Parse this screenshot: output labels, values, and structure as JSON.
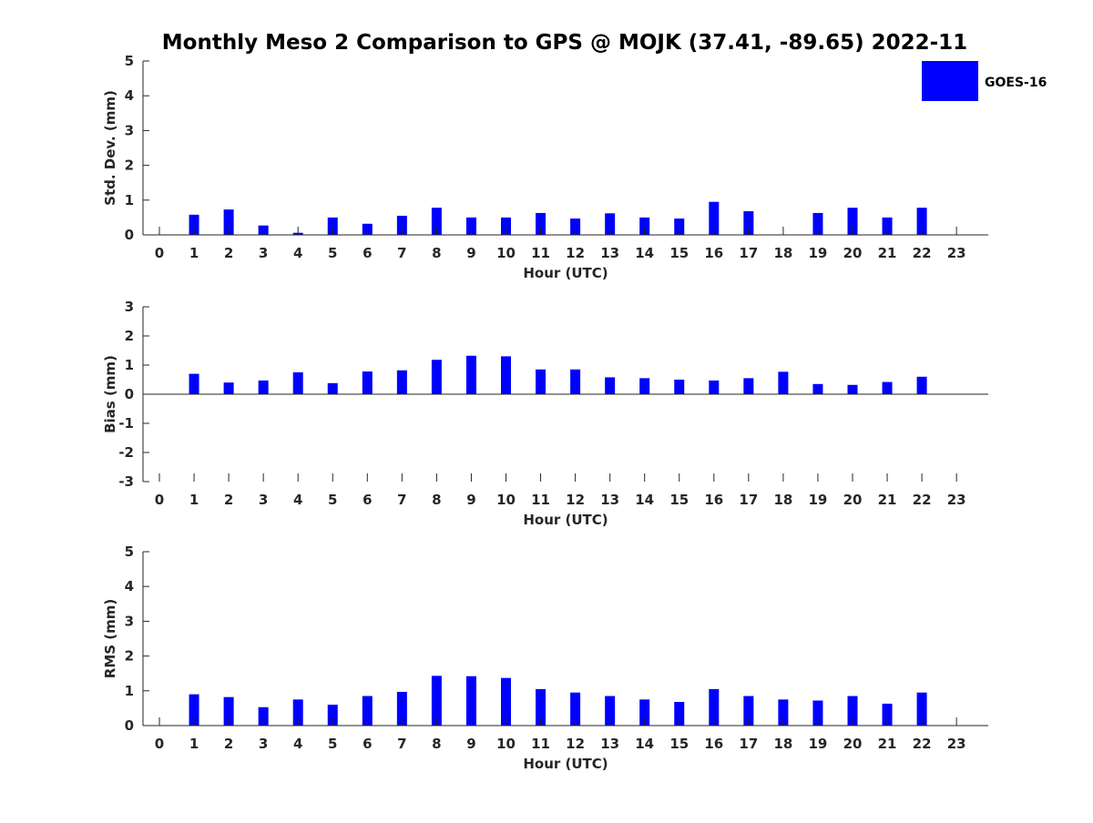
{
  "title": "Monthly Meso 2 Comparison to GPS @ MOJK (37.41, -89.65) 2022-11",
  "legend": {
    "label": "GOES-16",
    "color": "#0000ff",
    "placement": "top-right"
  },
  "bar_color": "#0000ff",
  "chart_data": [
    {
      "type": "bar",
      "title": "Monthly Meso 2 Comparison to GPS @ MOJK (37.41, -89.65) 2022-11",
      "xlabel": "Hour (UTC)",
      "ylabel": "Std. Dev. (mm)",
      "categories": [
        0,
        1,
        2,
        3,
        4,
        5,
        6,
        7,
        8,
        9,
        10,
        11,
        12,
        13,
        14,
        15,
        16,
        17,
        18,
        19,
        20,
        21,
        22,
        23
      ],
      "ylim": [
        0,
        5
      ],
      "yticks": [
        0,
        1,
        2,
        3,
        4,
        5
      ],
      "series": [
        {
          "name": "GOES-16",
          "values": [
            null,
            0.58,
            0.73,
            0.27,
            0.06,
            0.5,
            0.32,
            0.55,
            0.78,
            0.5,
            0.5,
            0.63,
            0.47,
            0.62,
            0.5,
            0.47,
            0.95,
            0.68,
            null,
            0.63,
            0.78,
            0.5,
            0.78,
            null
          ]
        }
      ],
      "grid": false
    },
    {
      "type": "bar",
      "xlabel": "Hour (UTC)",
      "ylabel": "Bias (mm)",
      "categories": [
        0,
        1,
        2,
        3,
        4,
        5,
        6,
        7,
        8,
        9,
        10,
        11,
        12,
        13,
        14,
        15,
        16,
        17,
        18,
        19,
        20,
        21,
        22,
        23
      ],
      "ylim": [
        -3,
        3
      ],
      "yticks": [
        -3,
        -2,
        -1,
        0,
        1,
        2,
        3
      ],
      "series": [
        {
          "name": "GOES-16",
          "values": [
            null,
            0.7,
            0.4,
            0.47,
            0.75,
            0.38,
            0.78,
            0.82,
            1.18,
            1.32,
            1.3,
            0.85,
            0.85,
            0.58,
            0.55,
            0.5,
            0.47,
            0.55,
            0.77,
            0.35,
            0.32,
            0.42,
            0.6,
            null
          ]
        }
      ],
      "grid": false
    },
    {
      "type": "bar",
      "xlabel": "Hour (UTC)",
      "ylabel": "RMS (mm)",
      "categories": [
        0,
        1,
        2,
        3,
        4,
        5,
        6,
        7,
        8,
        9,
        10,
        11,
        12,
        13,
        14,
        15,
        16,
        17,
        18,
        19,
        20,
        21,
        22,
        23
      ],
      "ylim": [
        0,
        5
      ],
      "yticks": [
        0,
        1,
        2,
        3,
        4,
        5
      ],
      "series": [
        {
          "name": "GOES-16",
          "values": [
            null,
            0.9,
            0.82,
            0.53,
            0.75,
            0.6,
            0.85,
            0.97,
            1.43,
            1.42,
            1.37,
            1.05,
            0.95,
            0.85,
            0.75,
            0.68,
            1.05,
            0.85,
            0.75,
            0.72,
            0.85,
            0.63,
            0.95,
            null
          ]
        }
      ],
      "grid": false
    }
  ]
}
